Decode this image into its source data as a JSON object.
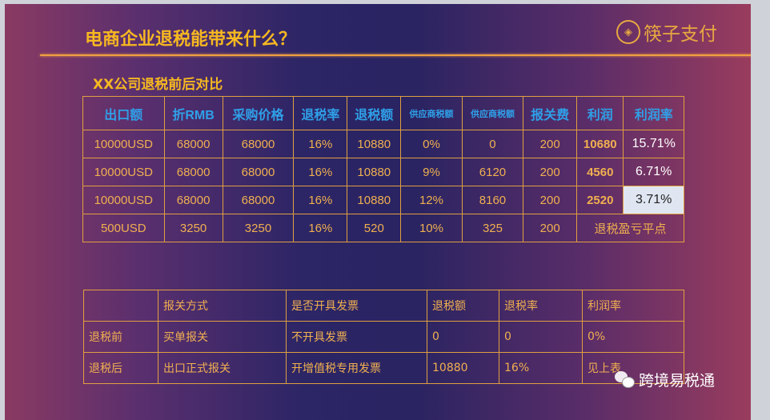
{
  "header": {
    "title": "电商企业退税能带来什么？",
    "logo_text": "筷子支付",
    "logo_mark": "◈"
  },
  "subtitle": "XX公司退税前后对比",
  "table1": {
    "headers": [
      "出口额",
      "折RMB",
      "采购价格",
      "退税率",
      "退税额",
      "供应商税额",
      "供应商税额",
      "报关费",
      "利润",
      "利润率"
    ],
    "rows": [
      [
        "10000USD",
        "68000",
        "68000",
        "16%",
        "10880",
        "0%",
        "0",
        "200",
        "10680",
        "15.71%"
      ],
      [
        "10000USD",
        "68000",
        "68000",
        "16%",
        "10880",
        "9%",
        "6120",
        "200",
        "4560",
        "6.71%"
      ],
      [
        "10000USD",
        "68000",
        "68000",
        "16%",
        "10880",
        "12%",
        "8160",
        "200",
        "2520",
        "3.71%"
      ],
      [
        "500USD",
        "3250",
        "3250",
        "16%",
        "520",
        "10%",
        "325",
        "200",
        "退税盈亏平点"
      ]
    ]
  },
  "table2": {
    "headers": [
      "",
      "报关方式",
      "是否开具发票",
      "退税额",
      "退税率",
      "利润率"
    ],
    "rows": [
      [
        "退税前",
        "买单报关",
        "不开具发票",
        "0",
        "0",
        "0%"
      ],
      [
        "退税后",
        "出口正式报关",
        "开增值税专用发票",
        "10880",
        "16%",
        "见上表"
      ]
    ]
  },
  "watermark": {
    "icon": "wechat-icon",
    "text": "跨境易税通"
  },
  "colors": {
    "title": "#f6b820",
    "header_text": "#2fa0e8",
    "cell_text": "#f0b050",
    "border": "#e0a040",
    "highlight": "#dfe6f2"
  }
}
